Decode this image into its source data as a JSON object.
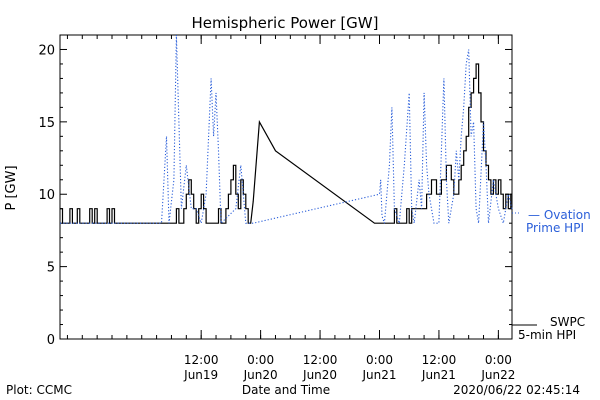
{
  "chart_data": {
    "type": "line",
    "title": "Hemispheric Power [GW]",
    "ylabel": "P [GW]",
    "xlabel": "Date and Time",
    "ylim": [
      0,
      21
    ],
    "xlim": [
      "2020-06-18 07:30",
      "2020-06-22 02:45"
    ],
    "y_ticks": [
      0,
      5,
      10,
      15,
      20
    ],
    "x_ticks": [
      {
        "time": "2020-06-19 12:00",
        "label1": "12:00",
        "label2": "Jun19"
      },
      {
        "time": "2020-06-20 00:00",
        "label1": "0:00",
        "label2": "Jun20"
      },
      {
        "time": "2020-06-20 12:00",
        "label1": "12:00",
        "label2": "Jun20"
      },
      {
        "time": "2020-06-21 00:00",
        "label1": "0:00",
        "label2": "Jun21"
      },
      {
        "time": "2020-06-21 12:00",
        "label1": "12:00",
        "label2": "Jun21"
      },
      {
        "time": "2020-06-22 00:00",
        "label1": "0:00",
        "label2": "Jun22"
      }
    ],
    "grid": false,
    "legend_position": "right, outside plot",
    "series": [
      {
        "name": "SWPC 5-min HPI",
        "color": "#000000",
        "style": "solid",
        "points": [
          [
            "2020-06-18 07:30",
            9
          ],
          [
            "2020-06-18 08:00",
            9
          ],
          [
            "2020-06-18 08:00",
            8
          ],
          [
            "2020-06-18 09:30",
            8
          ],
          [
            "2020-06-18 09:30",
            9
          ],
          [
            "2020-06-18 10:00",
            9
          ],
          [
            "2020-06-18 10:00",
            8
          ],
          [
            "2020-06-18 11:00",
            8
          ],
          [
            "2020-06-18 11:00",
            9
          ],
          [
            "2020-06-18 11:30",
            9
          ],
          [
            "2020-06-18 11:30",
            8
          ],
          [
            "2020-06-18 13:30",
            8
          ],
          [
            "2020-06-18 13:30",
            9
          ],
          [
            "2020-06-18 14:00",
            9
          ],
          [
            "2020-06-18 14:00",
            8
          ],
          [
            "2020-06-18 14:30",
            8
          ],
          [
            "2020-06-18 14:30",
            9
          ],
          [
            "2020-06-18 15:00",
            9
          ],
          [
            "2020-06-18 15:00",
            8
          ],
          [
            "2020-06-18 17:00",
            8
          ],
          [
            "2020-06-18 17:00",
            9
          ],
          [
            "2020-06-18 17:30",
            9
          ],
          [
            "2020-06-18 17:30",
            8
          ],
          [
            "2020-06-18 18:00",
            8
          ],
          [
            "2020-06-18 18:00",
            9
          ],
          [
            "2020-06-18 18:30",
            9
          ],
          [
            "2020-06-18 18:30",
            8
          ],
          [
            "2020-06-19 07:00",
            8
          ],
          [
            "2020-06-19 07:00",
            9
          ],
          [
            "2020-06-19 07:30",
            9
          ],
          [
            "2020-06-19 07:30",
            8
          ],
          [
            "2020-06-19 08:30",
            8
          ],
          [
            "2020-06-19 08:30",
            9
          ],
          [
            "2020-06-19 09:00",
            9
          ],
          [
            "2020-06-19 09:00",
            10
          ],
          [
            "2020-06-19 09:30",
            10
          ],
          [
            "2020-06-19 09:30",
            11
          ],
          [
            "2020-06-19 10:00",
            11
          ],
          [
            "2020-06-19 10:00",
            10
          ],
          [
            "2020-06-19 10:30",
            10
          ],
          [
            "2020-06-19 10:30",
            9
          ],
          [
            "2020-06-19 11:00",
            9
          ],
          [
            "2020-06-19 11:00",
            8
          ],
          [
            "2020-06-19 11:30",
            8
          ],
          [
            "2020-06-19 11:30",
            9
          ],
          [
            "2020-06-19 12:00",
            9
          ],
          [
            "2020-06-19 12:00",
            10
          ],
          [
            "2020-06-19 12:30",
            10
          ],
          [
            "2020-06-19 12:30",
            9
          ],
          [
            "2020-06-19 13:00",
            9
          ],
          [
            "2020-06-19 13:00",
            8
          ],
          [
            "2020-06-19 15:30",
            8
          ],
          [
            "2020-06-19 15:30",
            9
          ],
          [
            "2020-06-19 16:00",
            9
          ],
          [
            "2020-06-19 16:00",
            8
          ],
          [
            "2020-06-19 17:00",
            8
          ],
          [
            "2020-06-19 17:00",
            9
          ],
          [
            "2020-06-19 17:30",
            9
          ],
          [
            "2020-06-19 17:30",
            10
          ],
          [
            "2020-06-19 18:00",
            10
          ],
          [
            "2020-06-19 18:00",
            11
          ],
          [
            "2020-06-19 18:30",
            11
          ],
          [
            "2020-06-19 18:30",
            12
          ],
          [
            "2020-06-19 19:00",
            12
          ],
          [
            "2020-06-19 19:00",
            10
          ],
          [
            "2020-06-19 19:30",
            10
          ],
          [
            "2020-06-19 19:30",
            9
          ],
          [
            "2020-06-19 20:00",
            9
          ],
          [
            "2020-06-19 20:00",
            11
          ],
          [
            "2020-06-19 20:30",
            11
          ],
          [
            "2020-06-19 20:30",
            10
          ],
          [
            "2020-06-19 21:00",
            10
          ],
          [
            "2020-06-19 21:00",
            9
          ],
          [
            "2020-06-19 21:30",
            9
          ],
          [
            "2020-06-19 21:30",
            8
          ],
          [
            "2020-06-19 22:00",
            8
          ],
          [
            "2020-06-19 22:30",
            9.5
          ],
          [
            "2020-06-19 23:45",
            15
          ],
          [
            "2020-06-20 03:00",
            13
          ],
          [
            "2020-06-20 23:00",
            8
          ],
          [
            "2020-06-21 03:00",
            8
          ],
          [
            "2020-06-21 03:00",
            9
          ],
          [
            "2020-06-21 03:30",
            9
          ],
          [
            "2020-06-21 03:30",
            8
          ],
          [
            "2020-06-21 05:30",
            8
          ],
          [
            "2020-06-21 05:30",
            9
          ],
          [
            "2020-06-21 06:00",
            9
          ],
          [
            "2020-06-21 06:00",
            8
          ],
          [
            "2020-06-21 06:30",
            8
          ],
          [
            "2020-06-21 06:30",
            9
          ],
          [
            "2020-06-21 09:30",
            9
          ],
          [
            "2020-06-21 09:30",
            10
          ],
          [
            "2020-06-21 10:30",
            10
          ],
          [
            "2020-06-21 10:30",
            11
          ],
          [
            "2020-06-21 11:30",
            11
          ],
          [
            "2020-06-21 11:30",
            10
          ],
          [
            "2020-06-21 12:30",
            10
          ],
          [
            "2020-06-21 12:30",
            11
          ],
          [
            "2020-06-21 13:30",
            11
          ],
          [
            "2020-06-21 13:30",
            12
          ],
          [
            "2020-06-21 14:30",
            12
          ],
          [
            "2020-06-21 14:30",
            11
          ],
          [
            "2020-06-21 15:00",
            11
          ],
          [
            "2020-06-21 15:00",
            10
          ],
          [
            "2020-06-21 16:00",
            10
          ],
          [
            "2020-06-21 16:00",
            11
          ],
          [
            "2020-06-21 16:30",
            11
          ],
          [
            "2020-06-21 16:30",
            12
          ],
          [
            "2020-06-21 17:00",
            12
          ],
          [
            "2020-06-21 17:00",
            13
          ],
          [
            "2020-06-21 17:30",
            13
          ],
          [
            "2020-06-21 17:30",
            14
          ],
          [
            "2020-06-21 18:00",
            14
          ],
          [
            "2020-06-21 18:00",
            16
          ],
          [
            "2020-06-21 18:30",
            16
          ],
          [
            "2020-06-21 18:30",
            17
          ],
          [
            "2020-06-21 19:00",
            17
          ],
          [
            "2020-06-21 19:00",
            18
          ],
          [
            "2020-06-21 19:30",
            18
          ],
          [
            "2020-06-21 19:30",
            19
          ],
          [
            "2020-06-21 20:00",
            19
          ],
          [
            "2020-06-21 20:00",
            17
          ],
          [
            "2020-06-21 20:30",
            17
          ],
          [
            "2020-06-21 20:30",
            15
          ],
          [
            "2020-06-21 21:00",
            15
          ],
          [
            "2020-06-21 21:00",
            13
          ],
          [
            "2020-06-21 21:30",
            13
          ],
          [
            "2020-06-21 21:30",
            12
          ],
          [
            "2020-06-21 22:00",
            12
          ],
          [
            "2020-06-21 22:00",
            11
          ],
          [
            "2020-06-21 22:30",
            11
          ],
          [
            "2020-06-21 22:30",
            10
          ],
          [
            "2020-06-21 23:00",
            10
          ],
          [
            "2020-06-21 23:00",
            11
          ],
          [
            "2020-06-21 23:30",
            11
          ],
          [
            "2020-06-21 23:30",
            10
          ],
          [
            "2020-06-22 00:00",
            10
          ],
          [
            "2020-06-22 00:00",
            11
          ],
          [
            "2020-06-22 00:30",
            11
          ],
          [
            "2020-06-22 00:30",
            10
          ],
          [
            "2020-06-22 01:00",
            10
          ],
          [
            "2020-06-22 01:00",
            9
          ],
          [
            "2020-06-22 01:30",
            9
          ],
          [
            "2020-06-22 01:30",
            10
          ],
          [
            "2020-06-22 02:00",
            10
          ],
          [
            "2020-06-22 02:00",
            9
          ],
          [
            "2020-06-22 02:30",
            9
          ],
          [
            "2020-06-22 02:30",
            10
          ],
          [
            "2020-06-22 02:45",
            10
          ]
        ]
      },
      {
        "name": "Ovation Prime HPI",
        "color": "#2b5fd9",
        "style": "dotted",
        "points": [
          [
            "2020-06-18 07:30",
            8
          ],
          [
            "2020-06-19 04:00",
            8
          ],
          [
            "2020-06-19 05:00",
            14
          ],
          [
            "2020-06-19 05:30",
            8
          ],
          [
            "2020-06-19 06:30",
            11
          ],
          [
            "2020-06-19 07:00",
            21
          ],
          [
            "2020-06-19 07:30",
            15
          ],
          [
            "2020-06-19 08:00",
            9
          ],
          [
            "2020-06-19 09:00",
            12
          ],
          [
            "2020-06-19 10:00",
            9
          ],
          [
            "2020-06-19 11:00",
            9
          ],
          [
            "2020-06-19 12:00",
            8
          ],
          [
            "2020-06-19 13:00",
            10
          ],
          [
            "2020-06-19 14:00",
            18
          ],
          [
            "2020-06-19 14:30",
            14
          ],
          [
            "2020-06-19 15:00",
            17
          ],
          [
            "2020-06-19 15:30",
            13
          ],
          [
            "2020-06-19 16:00",
            8
          ],
          [
            "2020-06-19 19:00",
            9
          ],
          [
            "2020-06-19 20:00",
            12
          ],
          [
            "2020-06-19 21:00",
            8
          ],
          [
            "2020-06-19 22:30",
            8
          ],
          [
            "2020-06-21 00:00",
            10
          ],
          [
            "2020-06-21 00:15",
            11
          ],
          [
            "2020-06-21 00:30",
            8.5
          ],
          [
            "2020-06-21 01:00",
            8
          ],
          [
            "2020-06-21 02:00",
            12
          ],
          [
            "2020-06-21 02:30",
            16
          ],
          [
            "2020-06-21 03:00",
            9
          ],
          [
            "2020-06-21 04:00",
            8
          ],
          [
            "2020-06-21 05:00",
            12
          ],
          [
            "2020-06-21 06:00",
            17
          ],
          [
            "2020-06-21 06:30",
            9
          ],
          [
            "2020-06-21 07:00",
            8
          ],
          [
            "2020-06-21 08:00",
            11
          ],
          [
            "2020-06-21 08:30",
            9
          ],
          [
            "2020-06-21 09:00",
            17
          ],
          [
            "2020-06-21 09:30",
            12
          ],
          [
            "2020-06-21 10:00",
            10
          ],
          [
            "2020-06-21 11:00",
            8
          ],
          [
            "2020-06-21 12:00",
            8
          ],
          [
            "2020-06-21 13:00",
            18
          ],
          [
            "2020-06-21 13:30",
            11
          ],
          [
            "2020-06-21 14:00",
            8
          ],
          [
            "2020-06-21 15:00",
            10
          ],
          [
            "2020-06-21 15:30",
            13
          ],
          [
            "2020-06-21 16:00",
            11
          ],
          [
            "2020-06-21 16:30",
            14
          ],
          [
            "2020-06-21 17:00",
            16
          ],
          [
            "2020-06-21 17:30",
            19
          ],
          [
            "2020-06-21 18:00",
            20
          ],
          [
            "2020-06-21 18:30",
            14
          ],
          [
            "2020-06-21 19:00",
            15
          ],
          [
            "2020-06-21 19:30",
            9
          ],
          [
            "2020-06-21 20:00",
            8
          ],
          [
            "2020-06-21 21:00",
            15
          ],
          [
            "2020-06-21 21:30",
            12
          ],
          [
            "2020-06-21 22:00",
            8
          ],
          [
            "2020-06-21 23:00",
            11
          ],
          [
            "2020-06-22 00:00",
            9
          ],
          [
            "2020-06-22 01:00",
            8
          ],
          [
            "2020-06-22 02:00",
            10
          ],
          [
            "2020-06-22 02:45",
            9
          ]
        ]
      }
    ],
    "legend": [
      {
        "series": 1,
        "lines": [
          "Ovation",
          "Prime HPI"
        ],
        "marker": "—",
        "color": "#2b5fd9"
      },
      {
        "series": 0,
        "lines": [
          "SWPC",
          "5-min HPI"
        ],
        "color": "#000000"
      }
    ]
  },
  "footer": {
    "left": "Plot: CCMC",
    "center": "Date and Time",
    "right": "2020/06/22 02:45:14"
  }
}
